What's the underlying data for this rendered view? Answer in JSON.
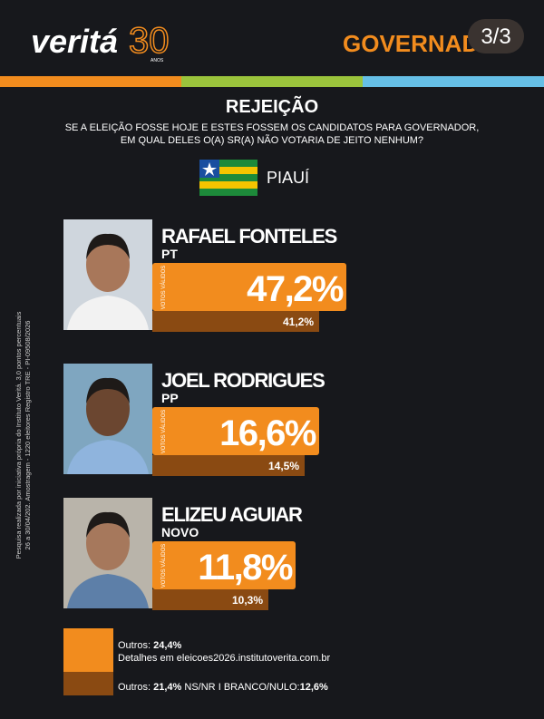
{
  "header": {
    "logo": "veritá",
    "logo_number": "30",
    "logo_small": "ANOS",
    "section": "GOVERNADOR",
    "page": "3/3"
  },
  "title": "REJEIÇÃO",
  "question": [
    "SE A ELEIÇÃO FOSSE HOJE E ESTES FOSSEM OS CANDIDATOS PARA GOVERNADOR,",
    "EM QUAL DELES O(A) SR(A) NÃO VOTARIA DE JEITO NENHUM?"
  ],
  "state": "PIAUÍ",
  "side_note": [
    "Pesquisa realizada por iniciativa própria do Instituto Veritá. 3,0 pontos percentuais",
    "26 a 30/04/202. Amostragem - 1220 eleitores Registro TRE - PI-09508/2026"
  ],
  "candidates": [
    {
      "name": "RAFAEL FONTELES",
      "party": "PT",
      "label": "VOTOS VÁLIDOS",
      "valid": "47,2%",
      "total": "41,2%"
    },
    {
      "name": "JOEL RODRIGUES",
      "party": "PP",
      "label": "VOTOS VÁLIDOS",
      "valid": "16,6%",
      "total": "14,5%"
    },
    {
      "name": "ELIZEU AGUIAR",
      "party": "NOVO",
      "label": "VOTOS VÁLIDOS",
      "valid": "11,8%",
      "total": "10,3%"
    }
  ],
  "footer": {
    "others_valid_label": "Outros:",
    "others_valid": "24,4%",
    "details": "Detalhes em eleicoes2026.institutoverita.com.br",
    "others_total_label": "Outros:",
    "others_total": "21,4%",
    "nsnr": "NS/NR",
    "sep": "I",
    "blank_label": "BRANCO/NULO:",
    "blank": "12,6%"
  }
}
